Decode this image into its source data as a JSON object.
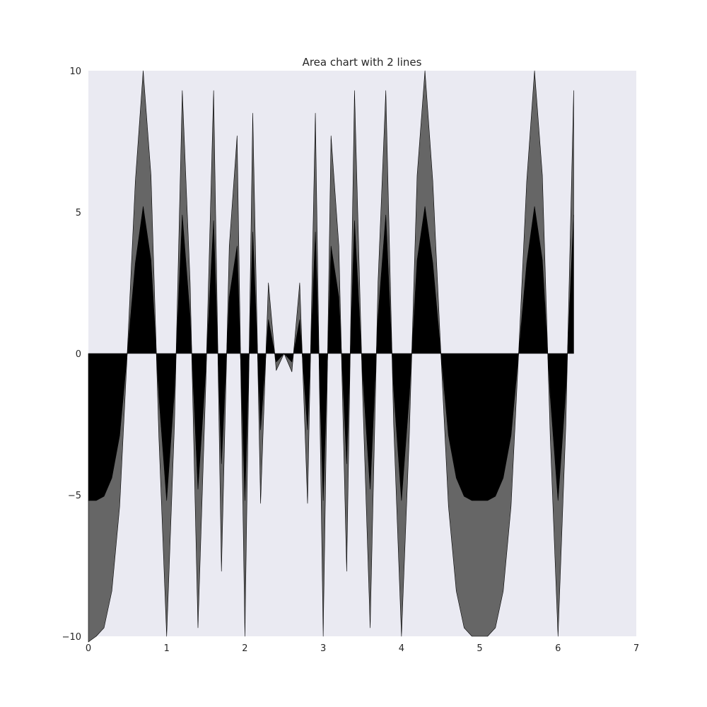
{
  "chart_data": {
    "type": "area",
    "title": "Area chart with 2 lines",
    "xlabel": "",
    "ylabel": "",
    "xlim": [
      0,
      7
    ],
    "ylim": [
      -10,
      10
    ],
    "grid": false,
    "background": "#eaeaf2",
    "x_ticks": [
      "0",
      "1",
      "2",
      "3",
      "4",
      "5",
      "6",
      "7"
    ],
    "y_ticks": [
      "−10",
      "−5",
      "0",
      "5",
      "10"
    ],
    "x": [
      0,
      0.1,
      0.2,
      0.3,
      0.4,
      0.5,
      0.6,
      0.7,
      0.8,
      0.9,
      1.0,
      1.1,
      1.2,
      1.3,
      1.4,
      1.5,
      1.6,
      1.7,
      1.8,
      1.9,
      2.0,
      2.1,
      2.2,
      2.3,
      2.4,
      2.5,
      2.6,
      2.7,
      2.8,
      2.9,
      3.0,
      3.1,
      3.2,
      3.3,
      3.4,
      3.5,
      3.6,
      3.7,
      3.8,
      3.9,
      4.0,
      4.1,
      4.2,
      4.3,
      4.4,
      4.5,
      4.6,
      4.7,
      4.8,
      4.9,
      5.0,
      5.1,
      5.2,
      5.3,
      5.4,
      5.5,
      5.6,
      5.7,
      5.8,
      5.9,
      6.0,
      6.1,
      6.2
    ],
    "series": [
      {
        "color": "#000000",
        "values": [
          -5.2,
          -5.2,
          -5.05,
          -4.4,
          -2.9,
          0.1,
          3.2,
          5.2,
          3.3,
          -1.5,
          -5.2,
          -1.3,
          4.9,
          1.3,
          -4.8,
          -0.6,
          4.7,
          -3.9,
          2.0,
          3.8,
          -5.2,
          4.3,
          -2.7,
          1.2,
          -0.3,
          0.0,
          -0.3,
          1.2,
          -2.7,
          4.3,
          -5.2,
          3.8,
          2.0,
          -3.9,
          4.7,
          -0.6,
          -4.8,
          1.3,
          4.9,
          -1.3,
          -5.2,
          -1.5,
          3.3,
          5.2,
          3.2,
          0.1,
          -2.9,
          -4.4,
          -5.05,
          -5.2,
          -5.2,
          -5.2,
          -5.05,
          -4.4,
          -2.9,
          0.1,
          3.2,
          5.2,
          3.3,
          -1.5,
          -5.2,
          -1.3,
          4.9
        ]
      },
      {
        "color": "#666666",
        "values": [
          -5.0,
          -4.8,
          -4.65,
          -4.0,
          -2.5,
          0.1,
          2.9,
          4.8,
          3.0,
          -1.4,
          -4.8,
          -1.2,
          4.4,
          1.2,
          -4.9,
          -0.5,
          4.6,
          -3.8,
          1.8,
          3.9,
          -4.8,
          4.2,
          -2.6,
          1.3,
          -0.3,
          0.0,
          -0.35,
          1.3,
          -2.6,
          4.2,
          -4.8,
          3.9,
          1.8,
          -3.8,
          4.6,
          -0.5,
          -4.9,
          1.2,
          4.4,
          -1.2,
          -4.8,
          -1.4,
          3.0,
          4.8,
          2.9,
          0.1,
          -2.5,
          -4.0,
          -4.65,
          -4.8,
          -4.8,
          -4.8,
          -4.65,
          -4.0,
          -2.5,
          0.1,
          2.9,
          4.8,
          3.0,
          -1.4,
          -4.8,
          -1.2,
          4.4
        ]
      }
    ]
  }
}
